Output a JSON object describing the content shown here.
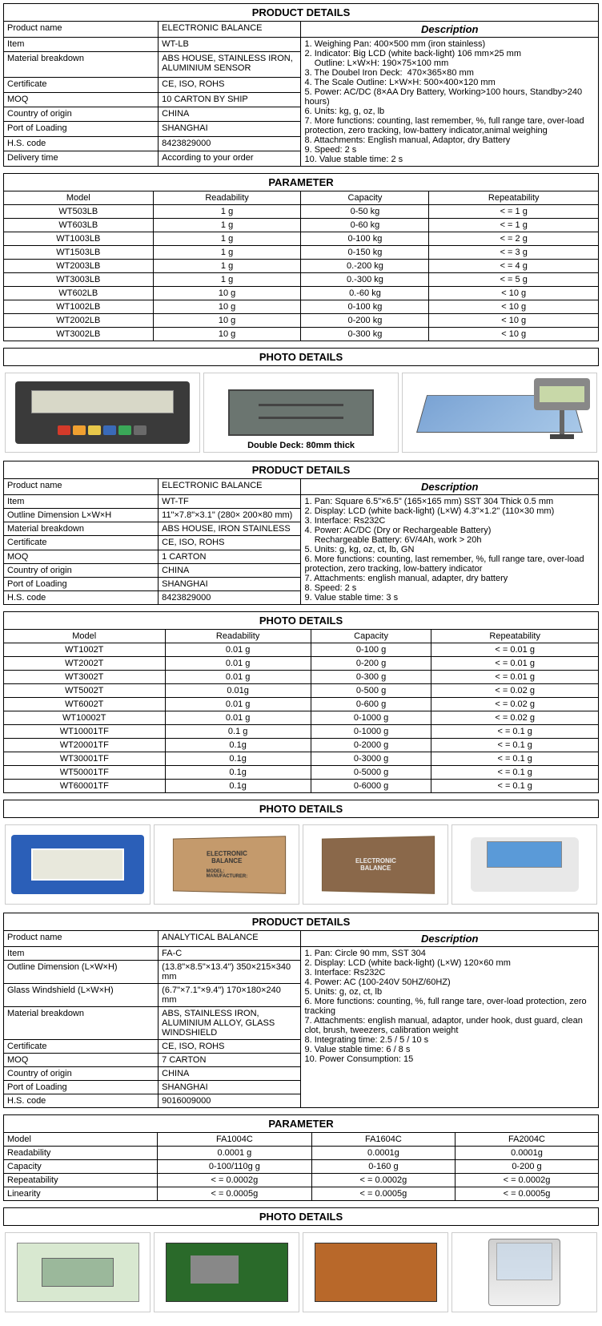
{
  "section1": {
    "title": "PRODUCT DETAILS",
    "desc_header": "Description",
    "rows": [
      [
        "Product name",
        "ELECTRONIC BALANCE"
      ],
      [
        "Item",
        "WT-LB"
      ],
      [
        "Material breakdown",
        "ABS HOUSE, STAINLESS IRON, ALUMINIUM SENSOR"
      ],
      [
        "Certificate",
        "CE, ISO, ROHS"
      ],
      [
        "MOQ",
        "10 CARTON BY SHIP"
      ],
      [
        "Country of origin",
        "CHINA"
      ],
      [
        "Port of Loading",
        "SHANGHAI"
      ],
      [
        "H.S. code",
        "8423829000"
      ],
      [
        "Delivery time",
        "According to your order"
      ]
    ],
    "description": "1. Weighing Pan: 400×500 mm (iron stainless)\n2. Indicator: Big LCD (white back-light) 106 mm×25 mm\n    Outline: L×W×H: 190×75×100 mm\n3. The Doubel Iron Deck:  470×365×80 mm\n4. The Scale Outline: L×W×H: 500×400×120 mm\n5. Power: AC/DC (8×AA Dry Battery, Working>100 hours, Standby>240 hours)\n6. Units: kg, g, oz, lb\n7. More functions: counting, last remember, %, full range tare, over-load protection, zero tracking, low-battery indicator,animal weighing\n8. Attachments: English manual, Adaptor, dry Battery\n9. Speed: 2 s\n10. Value stable time: 2 s"
  },
  "param1": {
    "title": "PARAMETER",
    "headers": [
      "Model",
      "Readability",
      "Capacity",
      "Repeatability"
    ],
    "rows": [
      [
        "WT503LB",
        "1 g",
        "0-50 kg",
        "< = 1 g"
      ],
      [
        "WT603LB",
        "1 g",
        "0-60 kg",
        "< = 1 g"
      ],
      [
        "WT1003LB",
        "1 g",
        "0-100 kg",
        "< = 2 g"
      ],
      [
        "WT1503LB",
        "1 g",
        "0-150 kg",
        "< = 3 g"
      ],
      [
        "WT2003LB",
        "1 g",
        "0.-200 kg",
        "< = 4 g"
      ],
      [
        "WT3003LB",
        "1 g",
        "0.-300 kg",
        "< = 5 g"
      ],
      [
        "WT602LB",
        "10 g",
        "0.-60 kg",
        "< 10 g"
      ],
      [
        "WT1002LB",
        "10 g",
        "0-100 kg",
        "< 10 g"
      ],
      [
        "WT2002LB",
        "10 g",
        "0-200 kg",
        "< 10 g"
      ],
      [
        "WT3002LB",
        "10 g",
        "0-300 kg",
        "< 10 g"
      ]
    ]
  },
  "photo1": {
    "title": "PHOTO DETAILS",
    "caption": "Double Deck: 80mm thick"
  },
  "section2": {
    "title": "PRODUCT DETAILS",
    "desc_header": "Description",
    "rows": [
      [
        "Product name",
        "ELECTRONIC BALANCE"
      ],
      [
        "Item",
        "WT-TF"
      ],
      [
        "Outline Dimension L×W×H",
        "11\"×7.8\"×3.1\" (280× 200×80 mm)"
      ],
      [
        "Material breakdown",
        "ABS HOUSE, IRON STAINLESS"
      ],
      [
        "Certificate",
        "CE, ISO, ROHS"
      ],
      [
        "MOQ",
        "1 CARTON"
      ],
      [
        "Country of origin",
        "CHINA"
      ],
      [
        "Port of Loading",
        "SHANGHAI"
      ],
      [
        "H.S. code",
        "8423829000"
      ]
    ],
    "description": "1. Pan: Square 6.5\"×6.5\" (165×165 mm) SST 304 Thick 0.5 mm\n2. Display: LCD (white back-light) (L×W) 4.3\"×1.2\" (110×30 mm)\n3. Interface: Rs232C\n4. Power: AC/DC (Dry or Rechargeable Battery)\n    Rechargeable Battery: 6V/4Ah, work > 20h\n5. Units: g, kg, oz, ct, lb, GN\n6. More functions: counting, last remember, %, full range tare, over-load protection, zero tracking, low-battery indicator\n7. Attachments: english manual, adapter, dry battery\n8. Speed: 2 s\n9. Value stable time: 3 s"
  },
  "param2": {
    "title": "PHOTO DETAILS",
    "headers": [
      "Model",
      "Readability",
      "Capacity",
      "Repeatability"
    ],
    "rows": [
      [
        "WT1002T",
        "0.01 g",
        "0-100 g",
        "< = 0.01 g"
      ],
      [
        "WT2002T",
        "0.01 g",
        "0-200 g",
        "< = 0.01 g"
      ],
      [
        "WT3002T",
        "0.01 g",
        "0-300 g",
        "< = 0.01 g"
      ],
      [
        "WT5002T",
        "0.01g",
        "0-500 g",
        "< = 0.02 g"
      ],
      [
        "WT6002T",
        "0.01 g",
        "0-600 g",
        "< = 0.02 g"
      ],
      [
        "WT10002T",
        "0.01 g",
        "0-1000 g",
        "< = 0.02 g"
      ],
      [
        "WT10001TF",
        "0.1 g",
        "0-1000 g",
        "< = 0.1 g"
      ],
      [
        "WT20001TF",
        "0.1g",
        "0-2000 g",
        "< = 0.1 g"
      ],
      [
        "WT30001TF",
        "0.1g",
        "0-3000 g",
        "< = 0.1 g"
      ],
      [
        "WT50001TF",
        "0.1g",
        "0-5000 g",
        "< = 0.1 g"
      ],
      [
        "WT60001TF",
        "0.1g",
        "0-6000 g",
        "< = 0.1 g"
      ]
    ]
  },
  "photo2": {
    "title": "PHOTO DETAILS",
    "carton_label": "ELECTRONIC\nBALANCE",
    "model_label": "MODEL:\nMANUFACTURER:"
  },
  "section3": {
    "title": "PRODUCT DETAILS",
    "desc_header": "Description",
    "rows": [
      [
        "Product name",
        "ANALYTICAL BALANCE"
      ],
      [
        "Item",
        "FA-C"
      ],
      [
        "Outline Dimension (L×W×H)",
        "(13.8\"×8.5\"×13.4\") 350×215×340 mm"
      ],
      [
        "Glass Windshield (L×W×H)",
        "(6.7\"×7.1\"×9.4\") 170×180×240 mm"
      ],
      [
        "Material breakdown",
        "ABS, STAINLESS IRON, ALUMINIUM ALLOY, GLASS WINDSHIELD"
      ],
      [
        "Certificate",
        "CE, ISO, ROHS"
      ],
      [
        "MOQ",
        "7 CARTON"
      ],
      [
        "Country of origin",
        "CHINA"
      ],
      [
        "Port of Loading",
        "SHANGHAI"
      ],
      [
        "H.S. code",
        "9016009000"
      ]
    ],
    "description": "1. Pan: Circle 90 mm, SST 304\n2. Display: LCD (white back-light) (L×W) 120×60 mm\n3. Interface: Rs232C\n4. Power: AC (100-240V 50HZ/60HZ)\n5. Units: g, oz, ct, lb\n6. More functions: counting, %, full range tare, over-load protection, zero tracking\n7. Attachments: english manual, adaptor, under hook, dust guard, clean clot, brush, tweezers, calibration weight\n8. Integrating time: 2.5 / 5 / 10 s\n9. Value stable time: 6 / 8 s\n10. Power Consumption: 15"
  },
  "param3": {
    "title": "PARAMETER",
    "row_headers": [
      "Model",
      "Readability",
      "Capacity",
      "Repeatability",
      "Linearity"
    ],
    "cols": [
      [
        "FA1004C",
        "0.0001 g",
        "0-100/110g g",
        "< = 0.0002g",
        "< = 0.0005g"
      ],
      [
        "FA1604C",
        "0.0001g",
        "0-160 g",
        "< = 0.0002g",
        "< = 0.0005g"
      ],
      [
        "FA2004C",
        "0.0001g",
        "0-200 g",
        "< = 0.0002g",
        "< = 0.0005g"
      ]
    ]
  },
  "photo3": {
    "title": "PHOTO DETAILS"
  },
  "btn_colors": {
    "power": "#d43a2a",
    "mplus": "#f0a030",
    "mode": "#e8c84a",
    "cal": "#3a6ab8",
    "tare": "#3aa858",
    "prt": "#6a6a6a"
  }
}
